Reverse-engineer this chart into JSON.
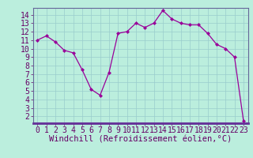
{
  "x_points": [
    0,
    1,
    2,
    3,
    4,
    5,
    6,
    7,
    8,
    9,
    10,
    11,
    12,
    13,
    14,
    15,
    16,
    17,
    18,
    19,
    20,
    21,
    22,
    23
  ],
  "y_points": [
    11,
    11.5,
    10.8,
    9.8,
    9.5,
    7.5,
    5.2,
    4.5,
    7.2,
    11.8,
    12.0,
    13.0,
    12.5,
    13.0,
    14.5,
    13.5,
    13.0,
    12.8,
    12.8,
    11.8,
    10.5,
    10.0,
    9.0,
    1.5
  ],
  "line_color": "#990099",
  "marker_color": "#990099",
  "bg_color": "#bbeedd",
  "grid_color": "#99cccc",
  "axis_bar_color": "#663399",
  "xlabel": "Windchill (Refroidissement éolien,°C)",
  "xlim": [
    -0.5,
    23.5
  ],
  "ylim": [
    1.2,
    14.8
  ],
  "yticks": [
    2,
    3,
    4,
    5,
    6,
    7,
    8,
    9,
    10,
    11,
    12,
    13,
    14
  ],
  "xticks": [
    0,
    1,
    2,
    3,
    4,
    5,
    6,
    7,
    8,
    9,
    10,
    11,
    12,
    13,
    14,
    15,
    16,
    17,
    18,
    19,
    20,
    21,
    22,
    23
  ],
  "xlabel_fontsize": 7.5,
  "tick_fontsize": 7
}
